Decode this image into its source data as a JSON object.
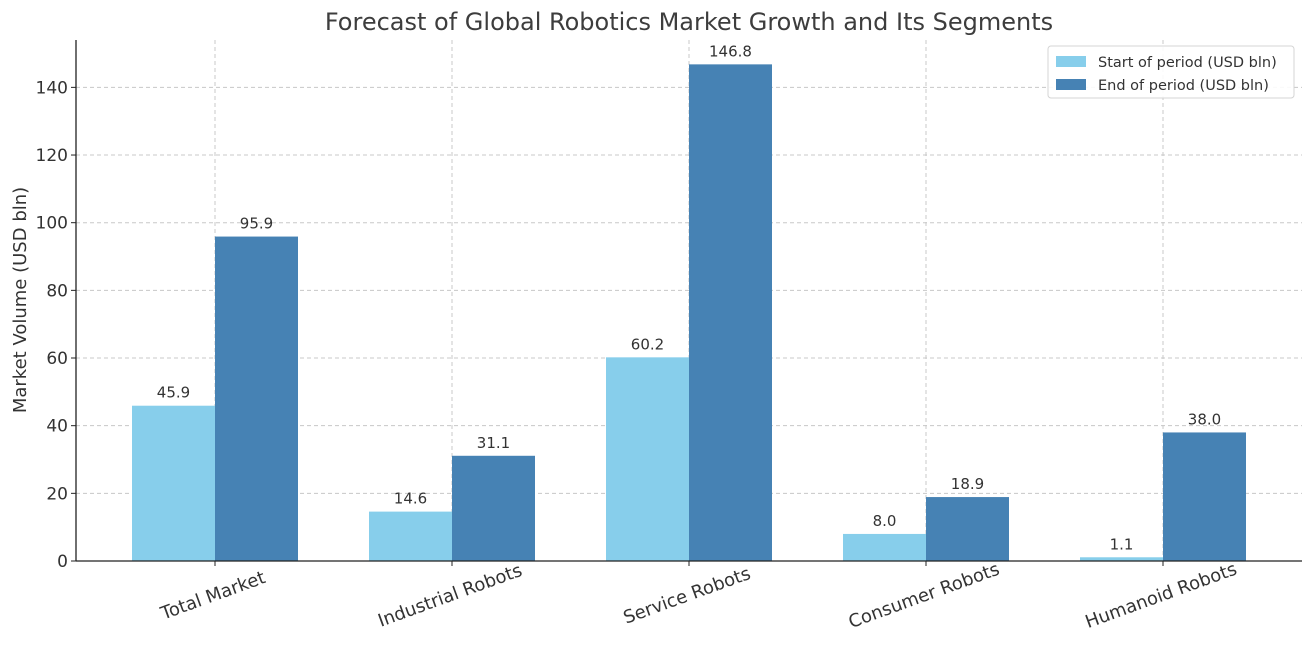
{
  "chart_data": {
    "type": "bar",
    "title": "Forecast of Global Robotics Market Growth and Its Segments",
    "xlabel": "",
    "ylabel": "Market Volume (USD bln)",
    "categories": [
      "Total Market",
      "Industrial Robots",
      "Service Robots",
      "Consumer Robots",
      "Humanoid Robots"
    ],
    "series": [
      {
        "name": "Start of period (USD bln)",
        "values": [
          45.9,
          14.6,
          60.2,
          8.0,
          1.1
        ],
        "color": "#87ceeb"
      },
      {
        "name": "End of period (USD bln)",
        "values": [
          95.9,
          31.1,
          146.8,
          18.9,
          38.0
        ],
        "color": "#4682b4"
      }
    ],
    "ylim": [
      0,
      154
    ],
    "yticks": [
      0,
      20,
      40,
      60,
      80,
      100,
      120,
      140
    ],
    "grid": true,
    "legend_position": "top-right",
    "data_labels": true
  }
}
